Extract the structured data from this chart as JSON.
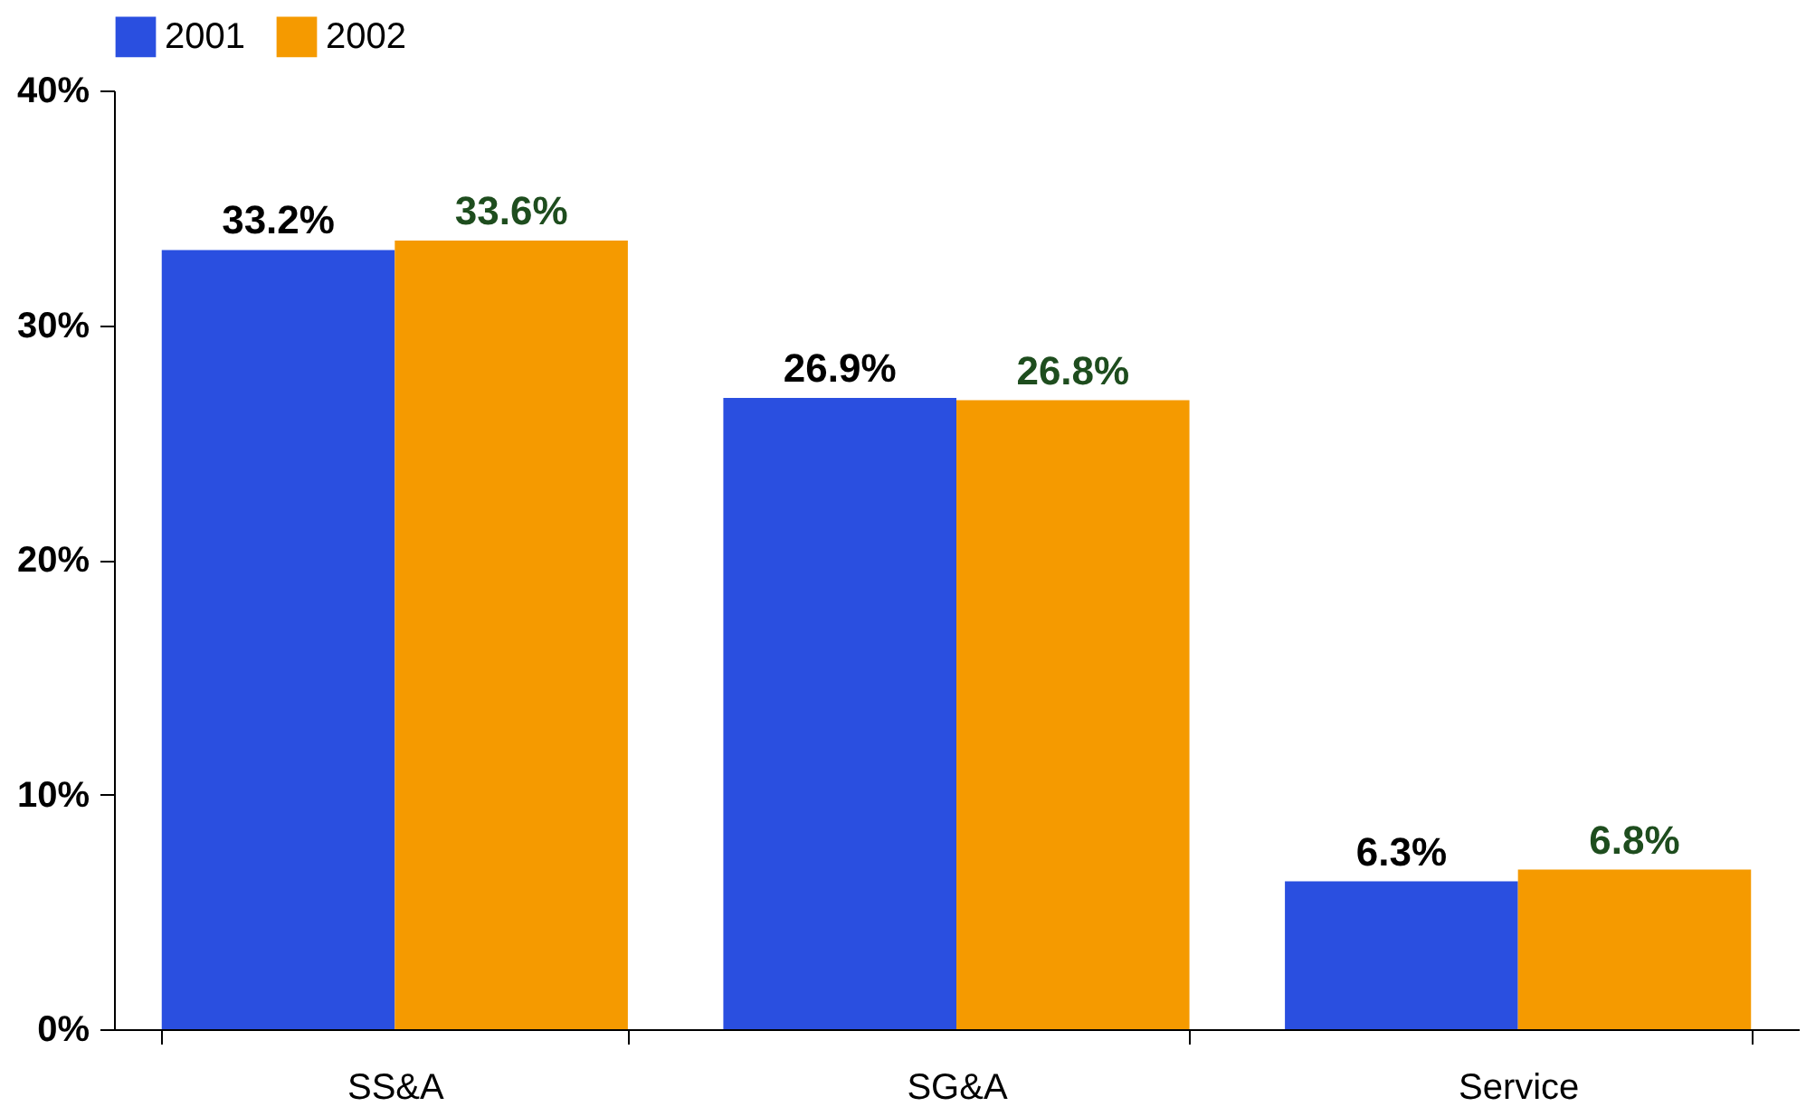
{
  "chart_data": {
    "type": "bar",
    "categories": [
      "SS&A",
      "SG&A",
      "Service"
    ],
    "series": [
      {
        "name": "2001",
        "color": "#2a4fe0",
        "values": [
          33.2,
          26.9,
          6.3
        ],
        "value_labels": [
          "33.2%",
          "26.9%",
          "6.3%"
        ]
      },
      {
        "name": "2002",
        "color": "#f59a00",
        "values": [
          33.6,
          26.8,
          6.8
        ],
        "value_labels": [
          "33.6%",
          "26.8%",
          "6.8%"
        ]
      }
    ],
    "ylim": [
      0,
      40
    ],
    "yticks": [
      {
        "value": 0,
        "label": "0%"
      },
      {
        "value": 10,
        "label": "10%"
      },
      {
        "value": 20,
        "label": "20%"
      },
      {
        "value": 30,
        "label": "30%"
      },
      {
        "value": 40,
        "label": "40%"
      }
    ],
    "grid": false,
    "legend": "top"
  }
}
